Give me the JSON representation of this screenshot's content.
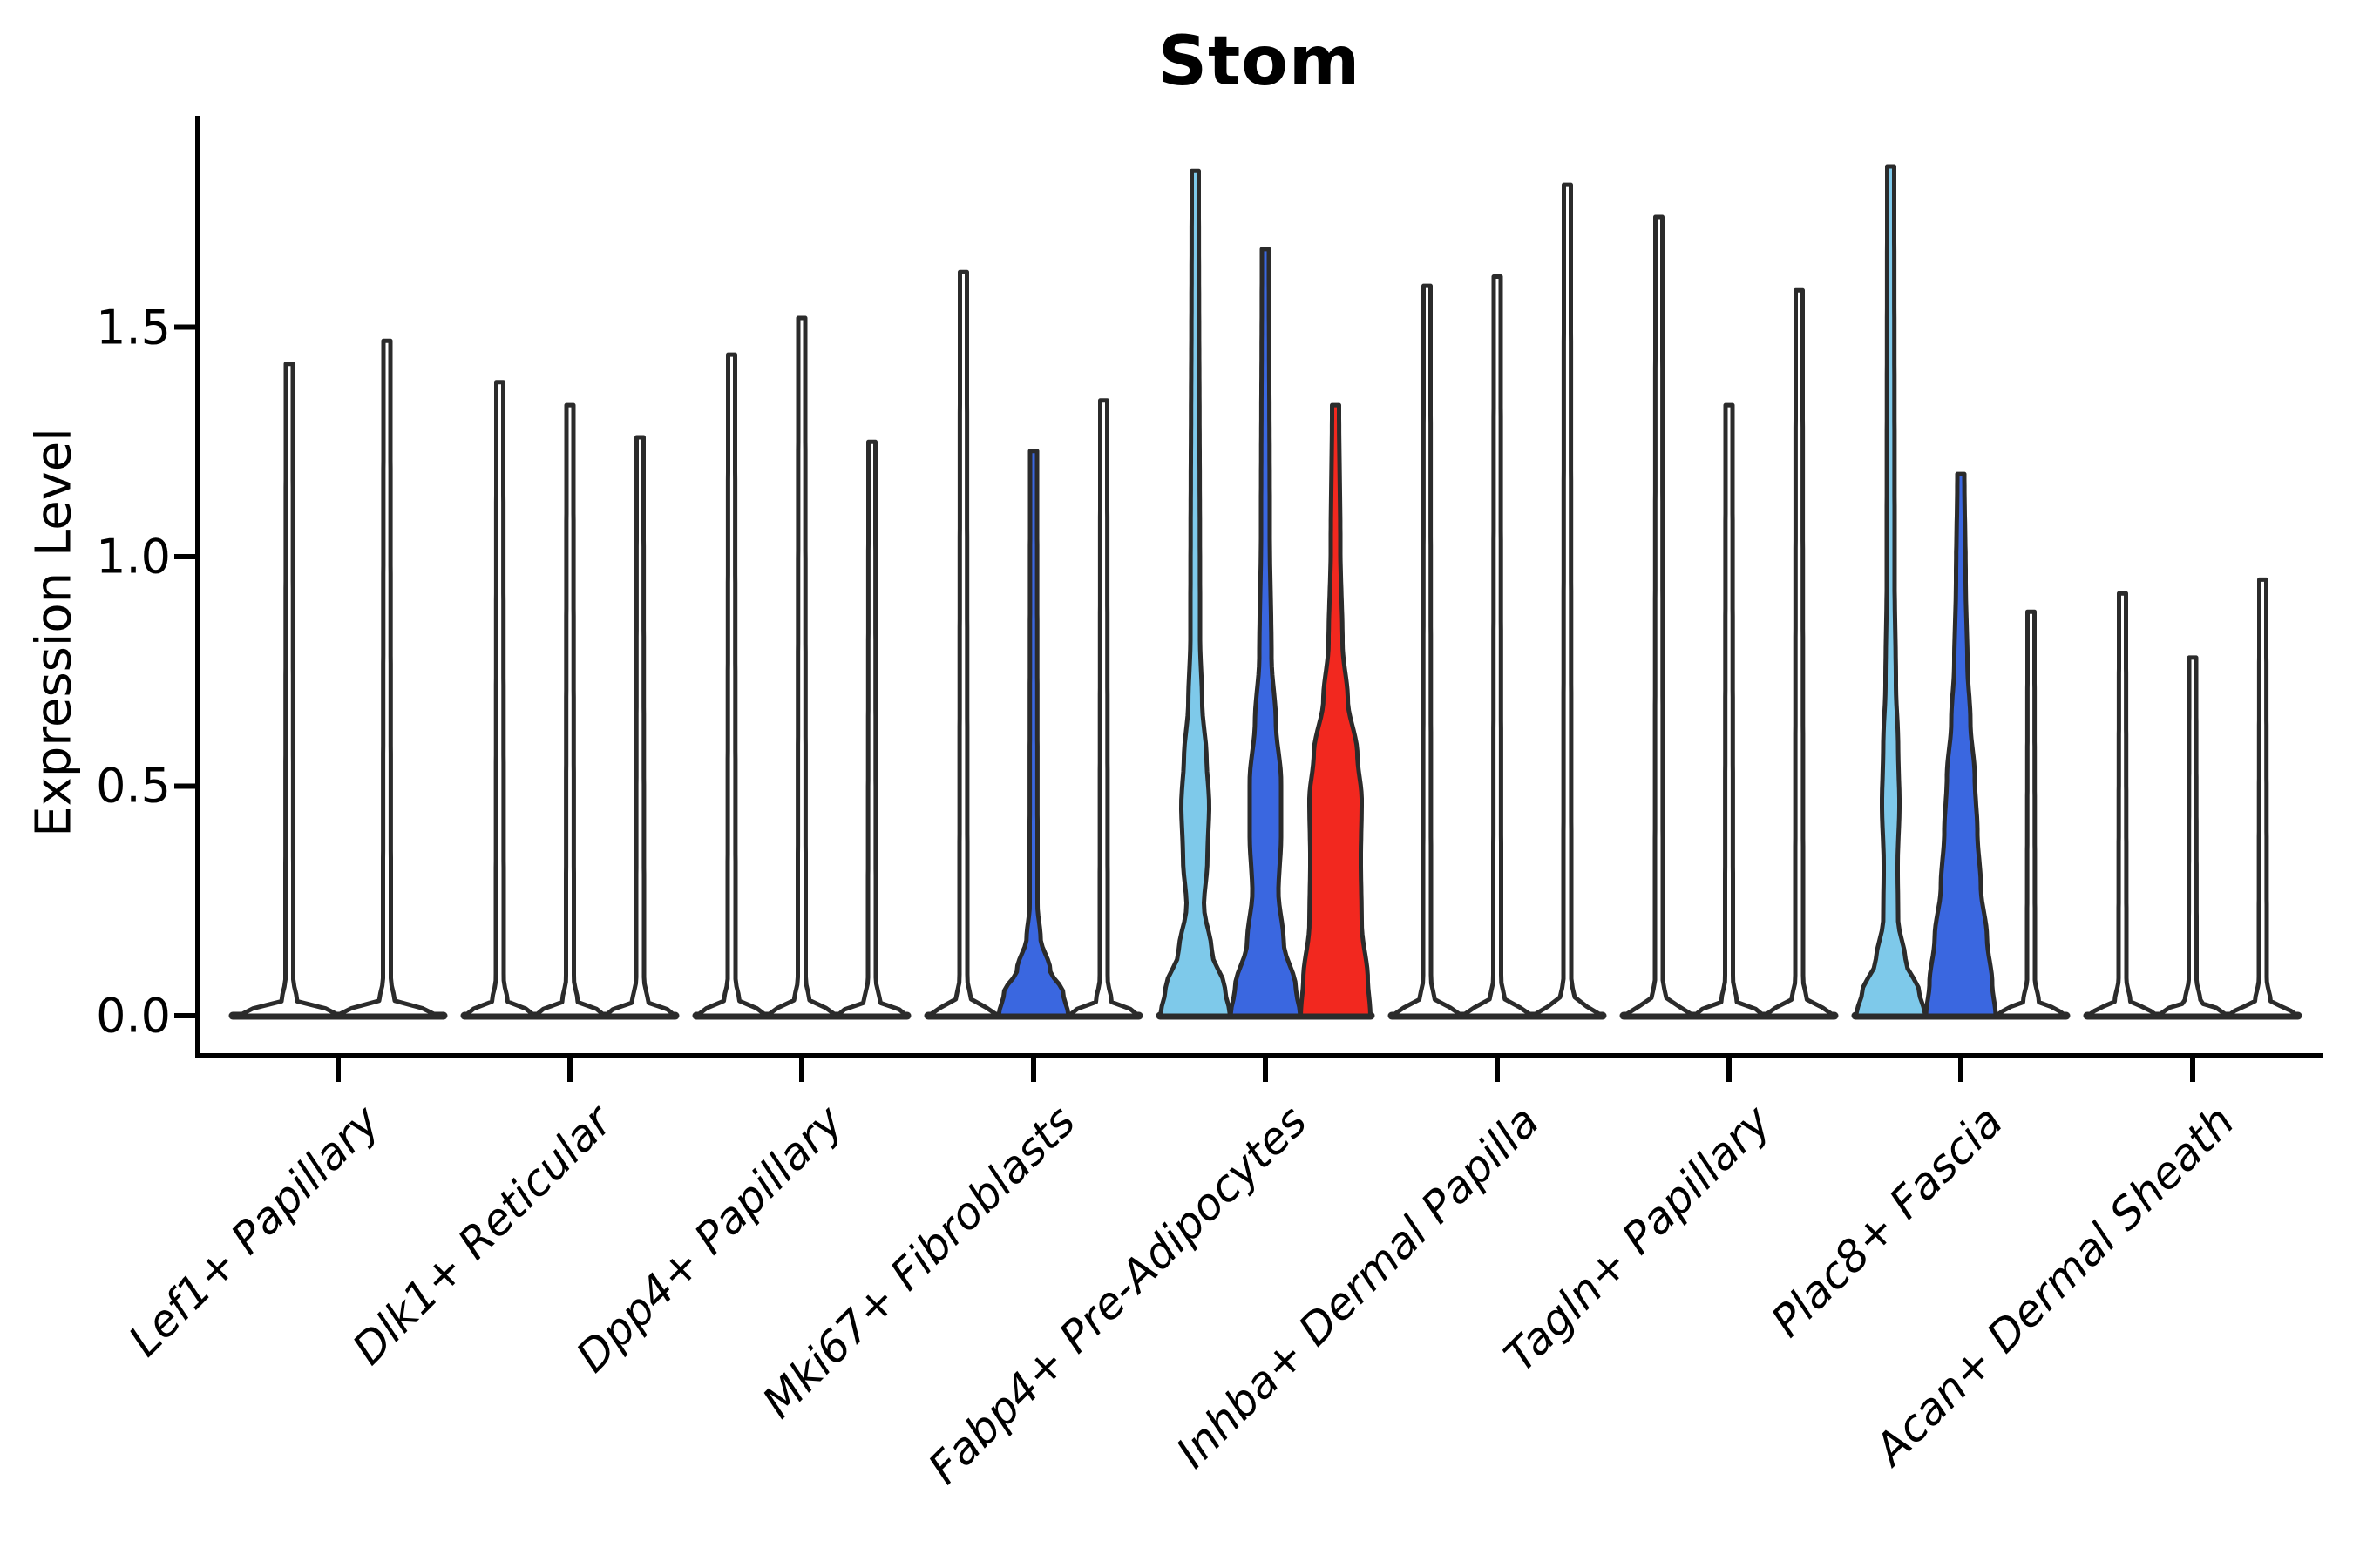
{
  "chart_data": {
    "type": "violin",
    "title": "Stom",
    "xlabel": "",
    "ylabel": "Expression Level",
    "ytick_labels": [
      "0.0",
      "0.5",
      "1.0",
      "1.5"
    ],
    "ytick_values": [
      0.0,
      0.5,
      1.0,
      1.5
    ],
    "ylim": [
      -0.09,
      1.96
    ],
    "grid": false,
    "legend": "none",
    "categories": [
      "Lef1+ Papillary",
      "Dlk1+ Reticular",
      "Dpp4+ Papillary",
      "Mki67+ Fibroblasts",
      "Fabp4+ Pre-Adipocytes",
      "Inhba+ Dermal Papilla",
      "Tagln+ Papillary",
      "Plac8+ Fascia",
      "Acan+ Dermal Sheath"
    ],
    "palette": {
      "white": "#ffffff",
      "light_blue": "#7EC9EA",
      "dark_blue": "#3A67E0",
      "red": "#F2281F",
      "edge": "#2B2B2B",
      "axis": "#000000"
    },
    "violins": [
      {
        "group": 0,
        "slot": 0,
        "of": 2,
        "color": "white",
        "max": 1.42,
        "profile": [
          [
            0,
            58
          ],
          [
            0.012,
            46
          ],
          [
            0.03,
            9
          ],
          [
            0.08,
            4.5
          ],
          [
            1.42,
            4
          ]
        ]
      },
      {
        "group": 0,
        "slot": 1,
        "of": 2,
        "color": "white",
        "max": 1.47,
        "profile": [
          [
            0,
            58
          ],
          [
            0.012,
            46
          ],
          [
            0.03,
            9
          ],
          [
            0.08,
            4.5
          ],
          [
            1.47,
            4
          ]
        ]
      },
      {
        "group": 1,
        "slot": 0,
        "of": 3,
        "color": "white",
        "max": 1.38,
        "profile": [
          [
            0,
            40
          ],
          [
            0.012,
            32
          ],
          [
            0.03,
            9
          ],
          [
            0.08,
            4.5
          ],
          [
            1.38,
            4
          ]
        ]
      },
      {
        "group": 1,
        "slot": 1,
        "of": 3,
        "color": "white",
        "max": 1.33,
        "profile": [
          [
            0,
            40
          ],
          [
            0.012,
            32
          ],
          [
            0.03,
            9
          ],
          [
            0.08,
            4.5
          ],
          [
            1.33,
            4
          ]
        ]
      },
      {
        "group": 1,
        "slot": 2,
        "of": 3,
        "color": "white",
        "max": 1.26,
        "profile": [
          [
            0,
            40
          ],
          [
            0.012,
            32
          ],
          [
            0.03,
            9
          ],
          [
            0.08,
            4.5
          ],
          [
            1.26,
            4
          ]
        ]
      },
      {
        "group": 2,
        "slot": 0,
        "of": 3,
        "color": "white",
        "max": 1.44,
        "profile": [
          [
            0,
            40
          ],
          [
            0.012,
            32
          ],
          [
            0.03,
            9
          ],
          [
            0.08,
            4.5
          ],
          [
            1.44,
            4
          ]
        ]
      },
      {
        "group": 2,
        "slot": 1,
        "of": 3,
        "color": "white",
        "max": 1.52,
        "profile": [
          [
            0,
            40
          ],
          [
            0.012,
            32
          ],
          [
            0.03,
            9
          ],
          [
            0.08,
            4.5
          ],
          [
            1.52,
            4
          ]
        ]
      },
      {
        "group": 2,
        "slot": 2,
        "of": 3,
        "color": "white",
        "max": 1.25,
        "profile": [
          [
            0,
            40
          ],
          [
            0.012,
            32
          ],
          [
            0.03,
            9
          ],
          [
            0.08,
            4.5
          ],
          [
            1.25,
            4
          ]
        ]
      },
      {
        "group": 3,
        "slot": 0,
        "of": 3,
        "color": "white",
        "max": 1.62,
        "profile": [
          [
            0,
            40
          ],
          [
            0.012,
            32
          ],
          [
            0.03,
            9
          ],
          [
            0.08,
            4.5
          ],
          [
            1.62,
            4
          ]
        ]
      },
      {
        "group": 3,
        "slot": 1,
        "of": 3,
        "color": "dark_blue",
        "max": 1.23,
        "profile": [
          [
            0,
            40
          ],
          [
            0.05,
            34
          ],
          [
            0.1,
            19
          ],
          [
            0.17,
            8
          ],
          [
            0.24,
            4.5
          ],
          [
            1.23,
            4
          ]
        ]
      },
      {
        "group": 3,
        "slot": 2,
        "of": 3,
        "color": "white",
        "max": 1.34,
        "profile": [
          [
            0,
            40
          ],
          [
            0.012,
            32
          ],
          [
            0.03,
            9
          ],
          [
            0.08,
            4.5
          ],
          [
            1.34,
            4
          ]
        ]
      },
      {
        "group": 4,
        "slot": 0,
        "of": 3,
        "color": "light_blue",
        "max": 1.84,
        "profile": [
          [
            0,
            40
          ],
          [
            0.06,
            34
          ],
          [
            0.14,
            19
          ],
          [
            0.24,
            10
          ],
          [
            0.34,
            14
          ],
          [
            0.46,
            16
          ],
          [
            0.56,
            13
          ],
          [
            0.68,
            8
          ],
          [
            0.82,
            5.5
          ],
          [
            1.84,
            4
          ]
        ]
      },
      {
        "group": 4,
        "slot": 1,
        "of": 3,
        "color": "dark_blue",
        "max": 1.67,
        "profile": [
          [
            0,
            40
          ],
          [
            0.06,
            35
          ],
          [
            0.16,
            21
          ],
          [
            0.27,
            15
          ],
          [
            0.39,
            18
          ],
          [
            0.51,
            18
          ],
          [
            0.64,
            12
          ],
          [
            0.78,
            7
          ],
          [
            1.05,
            5
          ],
          [
            1.67,
            4
          ]
        ]
      },
      {
        "group": 4,
        "slot": 2,
        "of": 3,
        "color": "red",
        "max": 1.33,
        "profile": [
          [
            0,
            40
          ],
          [
            0.08,
            37
          ],
          [
            0.2,
            30
          ],
          [
            0.34,
            29
          ],
          [
            0.47,
            30
          ],
          [
            0.57,
            25
          ],
          [
            0.69,
            14
          ],
          [
            0.81,
            8
          ],
          [
            1.02,
            5.5
          ],
          [
            1.33,
            4
          ]
        ]
      },
      {
        "group": 5,
        "slot": 0,
        "of": 3,
        "color": "white",
        "max": 1.59,
        "profile": [
          [
            0,
            40
          ],
          [
            0.012,
            32
          ],
          [
            0.03,
            9
          ],
          [
            0.08,
            4.5
          ],
          [
            1.59,
            4
          ]
        ]
      },
      {
        "group": 5,
        "slot": 1,
        "of": 3,
        "color": "white",
        "max": 1.61,
        "profile": [
          [
            0,
            40
          ],
          [
            0.012,
            32
          ],
          [
            0.03,
            9
          ],
          [
            0.08,
            4.5
          ],
          [
            1.61,
            4
          ]
        ]
      },
      {
        "group": 5,
        "slot": 2,
        "of": 3,
        "color": "white",
        "max": 1.81,
        "profile": [
          [
            0,
            40
          ],
          [
            0.012,
            32
          ],
          [
            0.03,
            9
          ],
          [
            0.08,
            4.5
          ],
          [
            1.81,
            4
          ]
        ]
      },
      {
        "group": 6,
        "slot": 0,
        "of": 3,
        "color": "white",
        "max": 1.74,
        "profile": [
          [
            0,
            40
          ],
          [
            0.012,
            32
          ],
          [
            0.03,
            9
          ],
          [
            0.08,
            4.5
          ],
          [
            1.74,
            4
          ]
        ]
      },
      {
        "group": 6,
        "slot": 1,
        "of": 3,
        "color": "white",
        "max": 1.33,
        "profile": [
          [
            0,
            40
          ],
          [
            0.012,
            32
          ],
          [
            0.03,
            9
          ],
          [
            0.08,
            4.5
          ],
          [
            1.33,
            4
          ]
        ]
      },
      {
        "group": 6,
        "slot": 2,
        "of": 3,
        "color": "white",
        "max": 1.58,
        "profile": [
          [
            0,
            40
          ],
          [
            0.012,
            32
          ],
          [
            0.03,
            9
          ],
          [
            0.08,
            4.5
          ],
          [
            1.58,
            4
          ]
        ]
      },
      {
        "group": 7,
        "slot": 0,
        "of": 3,
        "color": "light_blue",
        "max": 1.85,
        "profile": [
          [
            0,
            40
          ],
          [
            0.05,
            33
          ],
          [
            0.12,
            17
          ],
          [
            0.21,
            8.5
          ],
          [
            0.33,
            8
          ],
          [
            0.46,
            10
          ],
          [
            0.59,
            8.5
          ],
          [
            0.72,
            6
          ],
          [
            0.95,
            4.5
          ],
          [
            1.85,
            4
          ]
        ]
      },
      {
        "group": 7,
        "slot": 1,
        "of": 3,
        "color": "dark_blue",
        "max": 1.18,
        "profile": [
          [
            0,
            40
          ],
          [
            0.07,
            36
          ],
          [
            0.17,
            30
          ],
          [
            0.28,
            23
          ],
          [
            0.4,
            19
          ],
          [
            0.52,
            16
          ],
          [
            0.64,
            11
          ],
          [
            0.77,
            7.5
          ],
          [
            0.95,
            5.5
          ],
          [
            1.18,
            4
          ]
        ]
      },
      {
        "group": 7,
        "slot": 2,
        "of": 3,
        "color": "white",
        "max": 0.88,
        "profile": [
          [
            0,
            40
          ],
          [
            0.012,
            32
          ],
          [
            0.03,
            9
          ],
          [
            0.08,
            4.5
          ],
          [
            0.88,
            4
          ]
        ]
      },
      {
        "group": 8,
        "slot": 0,
        "of": 3,
        "color": "white",
        "max": 0.92,
        "profile": [
          [
            0,
            40
          ],
          [
            0.012,
            32
          ],
          [
            0.03,
            9
          ],
          [
            0.08,
            4.5
          ],
          [
            0.92,
            4
          ]
        ]
      },
      {
        "group": 8,
        "slot": 1,
        "of": 3,
        "color": "white",
        "max": 0.78,
        "profile": [
          [
            0,
            40
          ],
          [
            0.012,
            32
          ],
          [
            0.03,
            9
          ],
          [
            0.08,
            4.5
          ],
          [
            0.78,
            4
          ]
        ]
      },
      {
        "group": 8,
        "slot": 2,
        "of": 3,
        "color": "white",
        "max": 0.95,
        "profile": [
          [
            0,
            40
          ],
          [
            0.012,
            32
          ],
          [
            0.03,
            9
          ],
          [
            0.08,
            4.5
          ],
          [
            0.95,
            4
          ]
        ]
      }
    ]
  }
}
